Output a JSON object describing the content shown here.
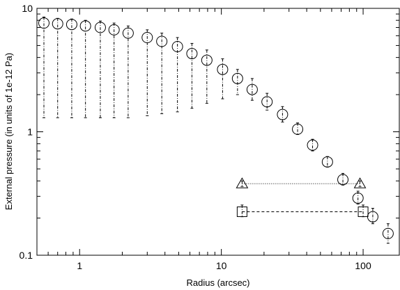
{
  "chart_data": {
    "type": "scatter",
    "title": "",
    "xlabel": "Radius (arcsec)",
    "ylabel": "External pressure (in units of 1e-12 Pa)",
    "xscale": "log",
    "yscale": "log",
    "xlim": [
      0.5,
      180
    ],
    "ylim": [
      0.1,
      10
    ],
    "grid": false,
    "legend": "none",
    "x_ticks": [
      {
        "value": 1,
        "label": "1"
      },
      {
        "value": 10,
        "label": "10"
      },
      {
        "value": 100,
        "label": "100"
      }
    ],
    "y_ticks": [
      {
        "value": 0.1,
        "label": "0.1"
      },
      {
        "value": 1,
        "label": "1"
      },
      {
        "value": 10,
        "label": "10"
      }
    ],
    "series": [
      {
        "marker": "circle",
        "points": [
          {
            "x": 0.56,
            "y": 7.6,
            "ylo": 1.3,
            "yhi": 8.5
          },
          {
            "x": 0.7,
            "y": 7.5,
            "ylo": 1.3,
            "yhi": 8.3
          },
          {
            "x": 0.88,
            "y": 7.4,
            "ylo": 1.3,
            "yhi": 8.2
          },
          {
            "x": 1.1,
            "y": 7.2,
            "ylo": 1.3,
            "yhi": 8.0
          },
          {
            "x": 1.4,
            "y": 7.0,
            "ylo": 1.3,
            "yhi": 7.9
          },
          {
            "x": 1.75,
            "y": 6.7,
            "ylo": 1.3,
            "yhi": 7.6
          },
          {
            "x": 2.2,
            "y": 6.3,
            "ylo": 1.3,
            "yhi": 7.2
          },
          {
            "x": 3.0,
            "y": 5.8,
            "ylo": 1.35,
            "yhi": 6.7
          },
          {
            "x": 3.8,
            "y": 5.4,
            "ylo": 1.4,
            "yhi": 6.3
          },
          {
            "x": 4.9,
            "y": 4.9,
            "ylo": 1.45,
            "yhi": 5.8
          },
          {
            "x": 6.2,
            "y": 4.3,
            "ylo": 1.55,
            "yhi": 5.2
          },
          {
            "x": 7.9,
            "y": 3.8,
            "ylo": 1.7,
            "yhi": 4.6
          },
          {
            "x": 10.2,
            "y": 3.2,
            "ylo": 1.85,
            "yhi": 3.9
          },
          {
            "x": 13.0,
            "y": 2.7,
            "ylo": 2.0,
            "yhi": 3.2
          },
          {
            "x": 16.5,
            "y": 2.2,
            "ylo": 1.8,
            "yhi": 2.7
          },
          {
            "x": 21.0,
            "y": 1.75,
            "ylo": 1.5,
            "yhi": 2.05
          },
          {
            "x": 27.0,
            "y": 1.38,
            "ylo": 1.2,
            "yhi": 1.6
          },
          {
            "x": 34.5,
            "y": 1.05,
            "ylo": 0.95,
            "yhi": 1.18
          },
          {
            "x": 44.0,
            "y": 0.78,
            "ylo": 0.7,
            "yhi": 0.87
          },
          {
            "x": 56.0,
            "y": 0.57,
            "ylo": 0.52,
            "yhi": 0.63
          },
          {
            "x": 72.0,
            "y": 0.41,
            "ylo": 0.37,
            "yhi": 0.46
          },
          {
            "x": 92.0,
            "y": 0.29,
            "ylo": 0.26,
            "yhi": 0.33
          },
          {
            "x": 117.0,
            "y": 0.205,
            "ylo": 0.18,
            "yhi": 0.24
          },
          {
            "x": 150.0,
            "y": 0.15,
            "ylo": 0.125,
            "yhi": 0.18
          }
        ]
      },
      {
        "marker": "triangle",
        "line": "dotted",
        "points": [
          {
            "x": 14.0,
            "y": 0.38,
            "ylo": 0.36,
            "yhi": 0.4
          },
          {
            "x": 95.0,
            "y": 0.38,
            "ylo": 0.36,
            "yhi": 0.4
          }
        ]
      },
      {
        "marker": "square",
        "line": "dashed",
        "points": [
          {
            "x": 14.0,
            "y": 0.225,
            "ylo": 0.205,
            "yhi": 0.255
          },
          {
            "x": 100.0,
            "y": 0.225,
            "ylo": 0.205,
            "yhi": 0.255
          }
        ]
      }
    ]
  }
}
